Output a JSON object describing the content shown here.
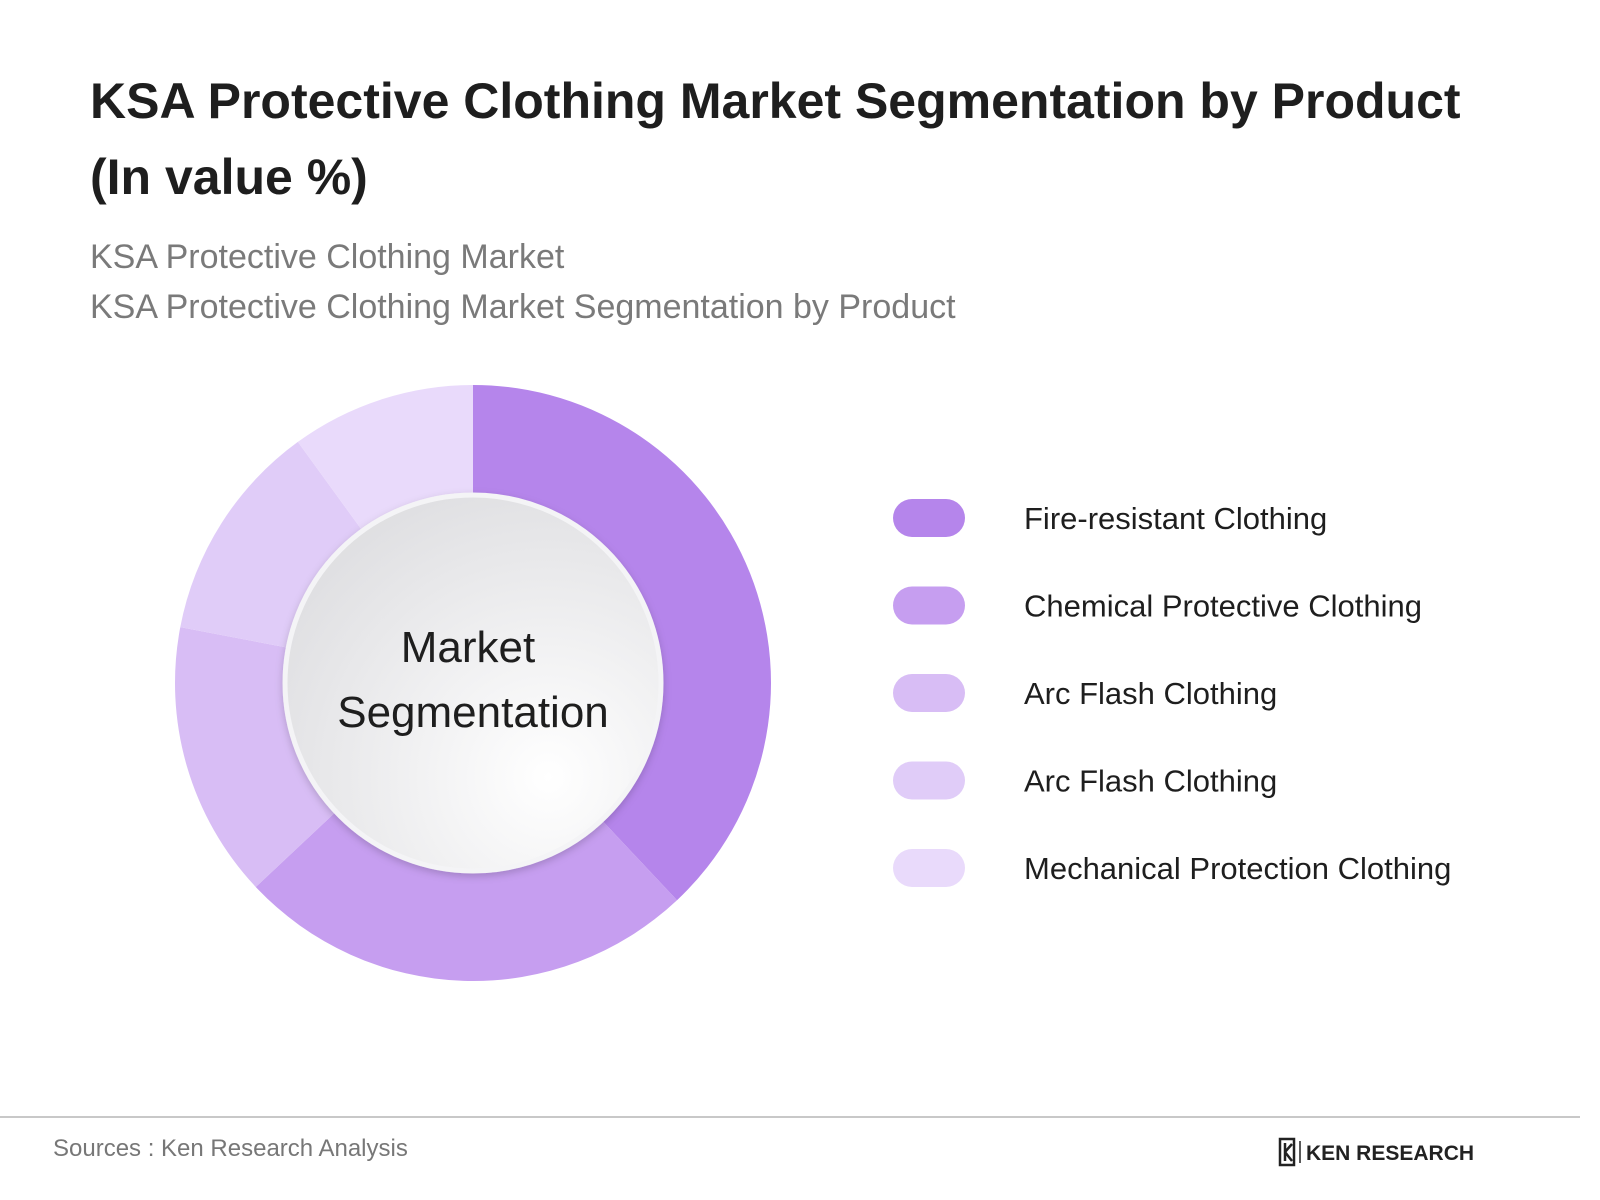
{
  "chart_data": {
    "type": "donut",
    "title": [
      "KSA Protective Clothing Market Segmentation by Product",
      "(In value %)"
    ],
    "subtitle": [
      "KSA Protective Clothing Market",
      "KSA Protective Clothing Market Segmentation by Product"
    ],
    "center_label": [
      "Market",
      "Segmentation"
    ],
    "categories": [
      "Fire-resistant Clothing",
      "Chemical Protective Clothing",
      "Arc Flash Clothing",
      "Arc Flash Clothing",
      "Mechanical Protection Clothing"
    ],
    "values": [
      38,
      25,
      15,
      12,
      10
    ],
    "colors": [
      "#b585eb",
      "#c69ef0",
      "#d8bdf5",
      "#e0ccf8",
      "#e9dafb"
    ]
  },
  "footer": {
    "source": "Sources : Ken Research Analysis",
    "brand": "KEN RESEARCH"
  }
}
